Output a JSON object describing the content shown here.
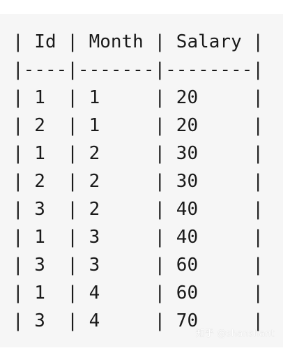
{
  "code_block": {
    "lines": [
      "| Id | Month | Salary |",
      "|----|-------|--------|",
      "| 1  | 1     | 20     |",
      "| 2  | 1     | 20     |",
      "| 1  | 2     | 30     |",
      "| 2  | 2     | 30     |",
      "| 3  | 2     | 40     |",
      "| 1  | 3     | 40     |",
      "| 3  | 3     | 60     |",
      "| 1  | 4     | 60     |",
      "| 3  | 4     | 70     |"
    ]
  },
  "watermark": {
    "text": "知乎 @shanshant"
  }
}
